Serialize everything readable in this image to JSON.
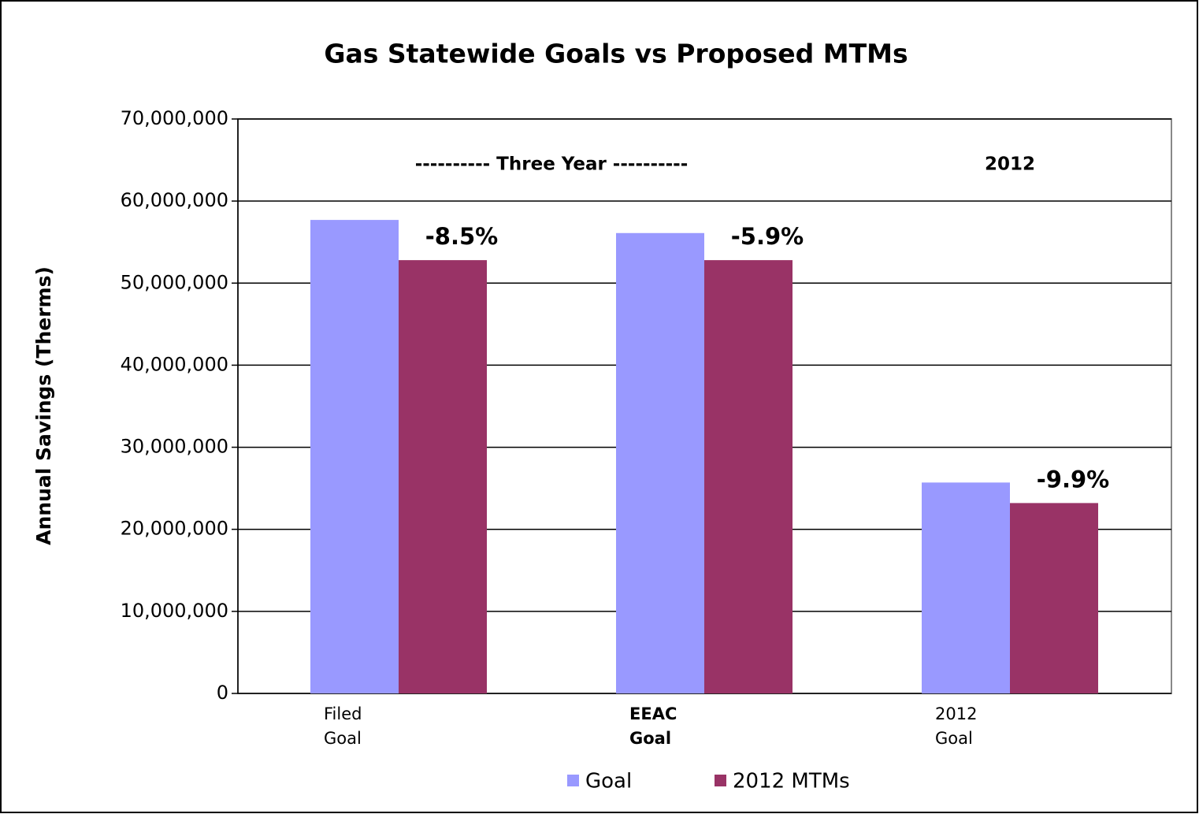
{
  "chart_data": {
    "type": "bar",
    "title": "Gas Statewide Goals vs Proposed MTMs",
    "y_label": "Annual Savings  (Therms)",
    "categories": [
      "Filed Goal",
      "EEAC Goal",
      "2012 Goal"
    ],
    "series": [
      {
        "name": "Goal",
        "color": "#9999ff",
        "values": [
          57700000,
          56100000,
          25700000
        ]
      },
      {
        "name": "2012 MTMs",
        "color": "#993366",
        "values": [
          52800000,
          52800000,
          23200000
        ]
      }
    ],
    "bar_annotations": [
      "-8.5%",
      "-5.9%",
      "-9.9%"
    ],
    "group_labels": [
      "---------- Three Year ----------",
      "2012"
    ],
    "ylim": [
      0,
      70000000
    ],
    "yticks": [
      0,
      {
        "value": 10000000,
        "label": "10,000,000"
      },
      {
        "value": 20000000,
        "label": "20,000,000"
      },
      {
        "value": 30000000,
        "label": "30,000,000"
      },
      {
        "value": 40000000,
        "label": "40,000,000"
      },
      {
        "value": 50000000,
        "label": "50,000,000"
      },
      {
        "value": 60000000,
        "label": "60,000,000"
      },
      {
        "value": 70000000,
        "label": "70,000,000"
      }
    ],
    "grid": true,
    "legend": "bottom"
  }
}
